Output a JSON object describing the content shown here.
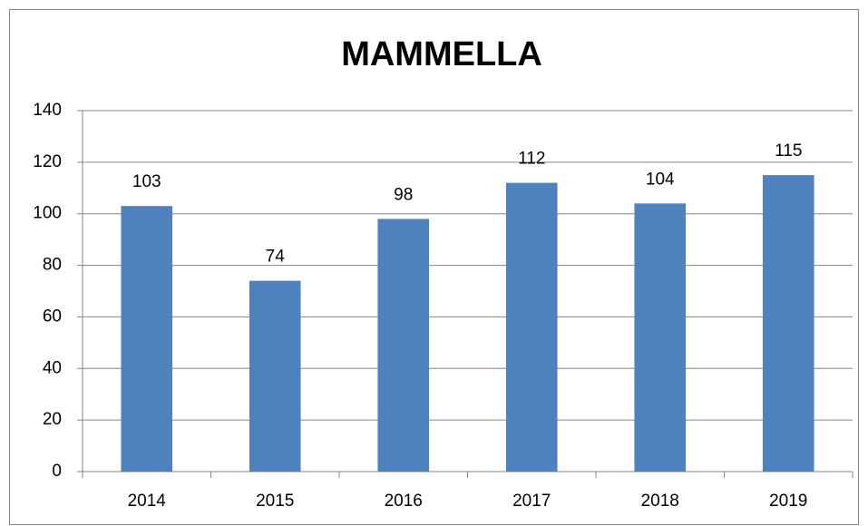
{
  "chart_data": {
    "type": "bar",
    "title": "MAMMELLA",
    "categories": [
      "2014",
      "2015",
      "2016",
      "2017",
      "2018",
      "2019"
    ],
    "values": [
      103,
      74,
      98,
      112,
      104,
      115
    ],
    "color": "#4f81bd",
    "ylim": [
      0,
      140
    ],
    "yticks": [
      0,
      20,
      40,
      60,
      80,
      100,
      120,
      140
    ],
    "grid": true
  }
}
